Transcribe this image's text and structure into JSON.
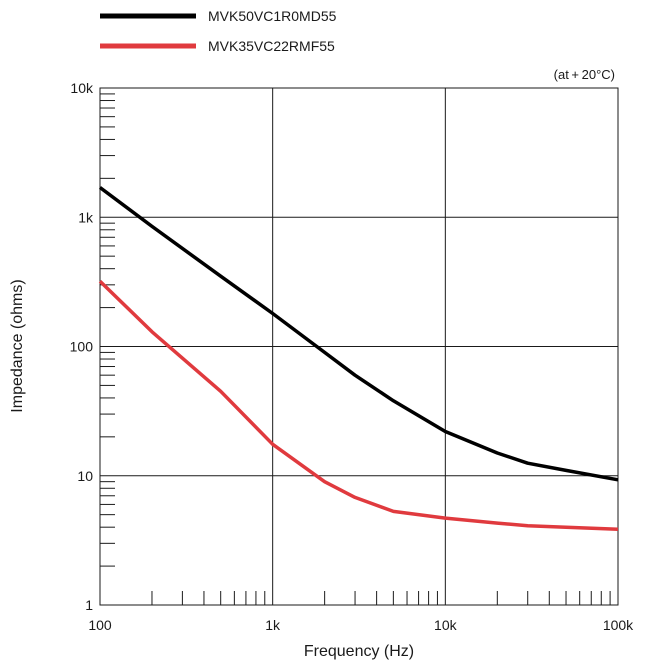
{
  "chart_data": {
    "type": "line",
    "title": "",
    "xlabel": "Frequency (Hz)",
    "ylabel": "Impedance (ohms)",
    "note": "(at + 20°C)",
    "x_scale": "log",
    "y_scale": "log",
    "xlim": [
      100,
      100000
    ],
    "ylim": [
      1,
      10000
    ],
    "x_ticks": [
      {
        "value": 100,
        "label": "100"
      },
      {
        "value": 1000,
        "label": "1k"
      },
      {
        "value": 10000,
        "label": "10k"
      },
      {
        "value": 100000,
        "label": "100k"
      }
    ],
    "y_ticks": [
      {
        "value": 1,
        "label": "1"
      },
      {
        "value": 10,
        "label": "10"
      },
      {
        "value": 100,
        "label": "100"
      },
      {
        "value": 1000,
        "label": "1k"
      },
      {
        "value": 10000,
        "label": "10k"
      }
    ],
    "grid": true,
    "legend_position": "top-left, above plot",
    "series": [
      {
        "name": "MVK50VC1R0MD55",
        "color": "#000000",
        "x": [
          100,
          200,
          500,
          1000,
          2000,
          3000,
          5000,
          10000,
          20000,
          30000,
          50000,
          100000
        ],
        "y": [
          1700,
          850,
          350,
          180,
          90,
          60,
          38,
          22,
          15,
          12.5,
          11,
          9.3
        ]
      },
      {
        "name": "MVK35VC22RMF55",
        "color": "#e03a3e",
        "x": [
          100,
          200,
          500,
          1000,
          2000,
          3000,
          5000,
          10000,
          20000,
          30000,
          50000,
          100000
        ],
        "y": [
          320,
          130,
          45,
          17.5,
          9,
          6.8,
          5.3,
          4.7,
          4.3,
          4.1,
          4.0,
          3.85
        ]
      }
    ]
  }
}
